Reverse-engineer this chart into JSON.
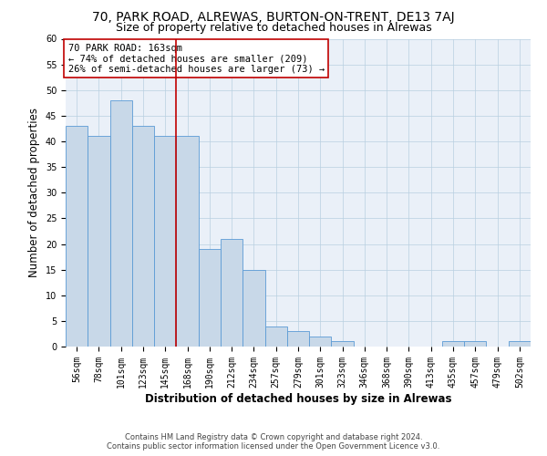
{
  "title1": "70, PARK ROAD, ALREWAS, BURTON-ON-TRENT, DE13 7AJ",
  "title2": "Size of property relative to detached houses in Alrewas",
  "xlabel": "Distribution of detached houses by size in Alrewas",
  "ylabel": "Number of detached properties",
  "footnote1": "Contains HM Land Registry data © Crown copyright and database right 2024.",
  "footnote2": "Contains public sector information licensed under the Open Government Licence v3.0.",
  "annotation_line1": "70 PARK ROAD: 163sqm",
  "annotation_line2": "← 74% of detached houses are smaller (209)",
  "annotation_line3": "26% of semi-detached houses are larger (73) →",
  "bar_labels": [
    "56sqm",
    "78sqm",
    "101sqm",
    "123sqm",
    "145sqm",
    "168sqm",
    "190sqm",
    "212sqm",
    "234sqm",
    "257sqm",
    "279sqm",
    "301sqm",
    "323sqm",
    "346sqm",
    "368sqm",
    "390sqm",
    "413sqm",
    "435sqm",
    "457sqm",
    "479sqm",
    "502sqm"
  ],
  "bar_values": [
    43,
    41,
    48,
    43,
    41,
    41,
    19,
    21,
    15,
    4,
    3,
    2,
    1,
    0,
    0,
    0,
    0,
    1,
    1,
    0,
    1
  ],
  "bar_color": "#c8d8e8",
  "bar_edge_color": "#5b9bd5",
  "vline_x_index": 5,
  "vline_color": "#c00000",
  "annotation_box_color": "#ffffff",
  "annotation_box_edge": "#c00000",
  "ylim": [
    0,
    60
  ],
  "yticks": [
    0,
    5,
    10,
    15,
    20,
    25,
    30,
    35,
    40,
    45,
    50,
    55,
    60
  ],
  "plot_bg_color": "#eaf0f8",
  "fig_bg_color": "#ffffff",
  "title_fontsize": 10,
  "subtitle_fontsize": 9,
  "axis_label_fontsize": 8.5,
  "tick_fontsize": 7,
  "footnote_fontsize": 6,
  "annot_fontsize": 7.5
}
